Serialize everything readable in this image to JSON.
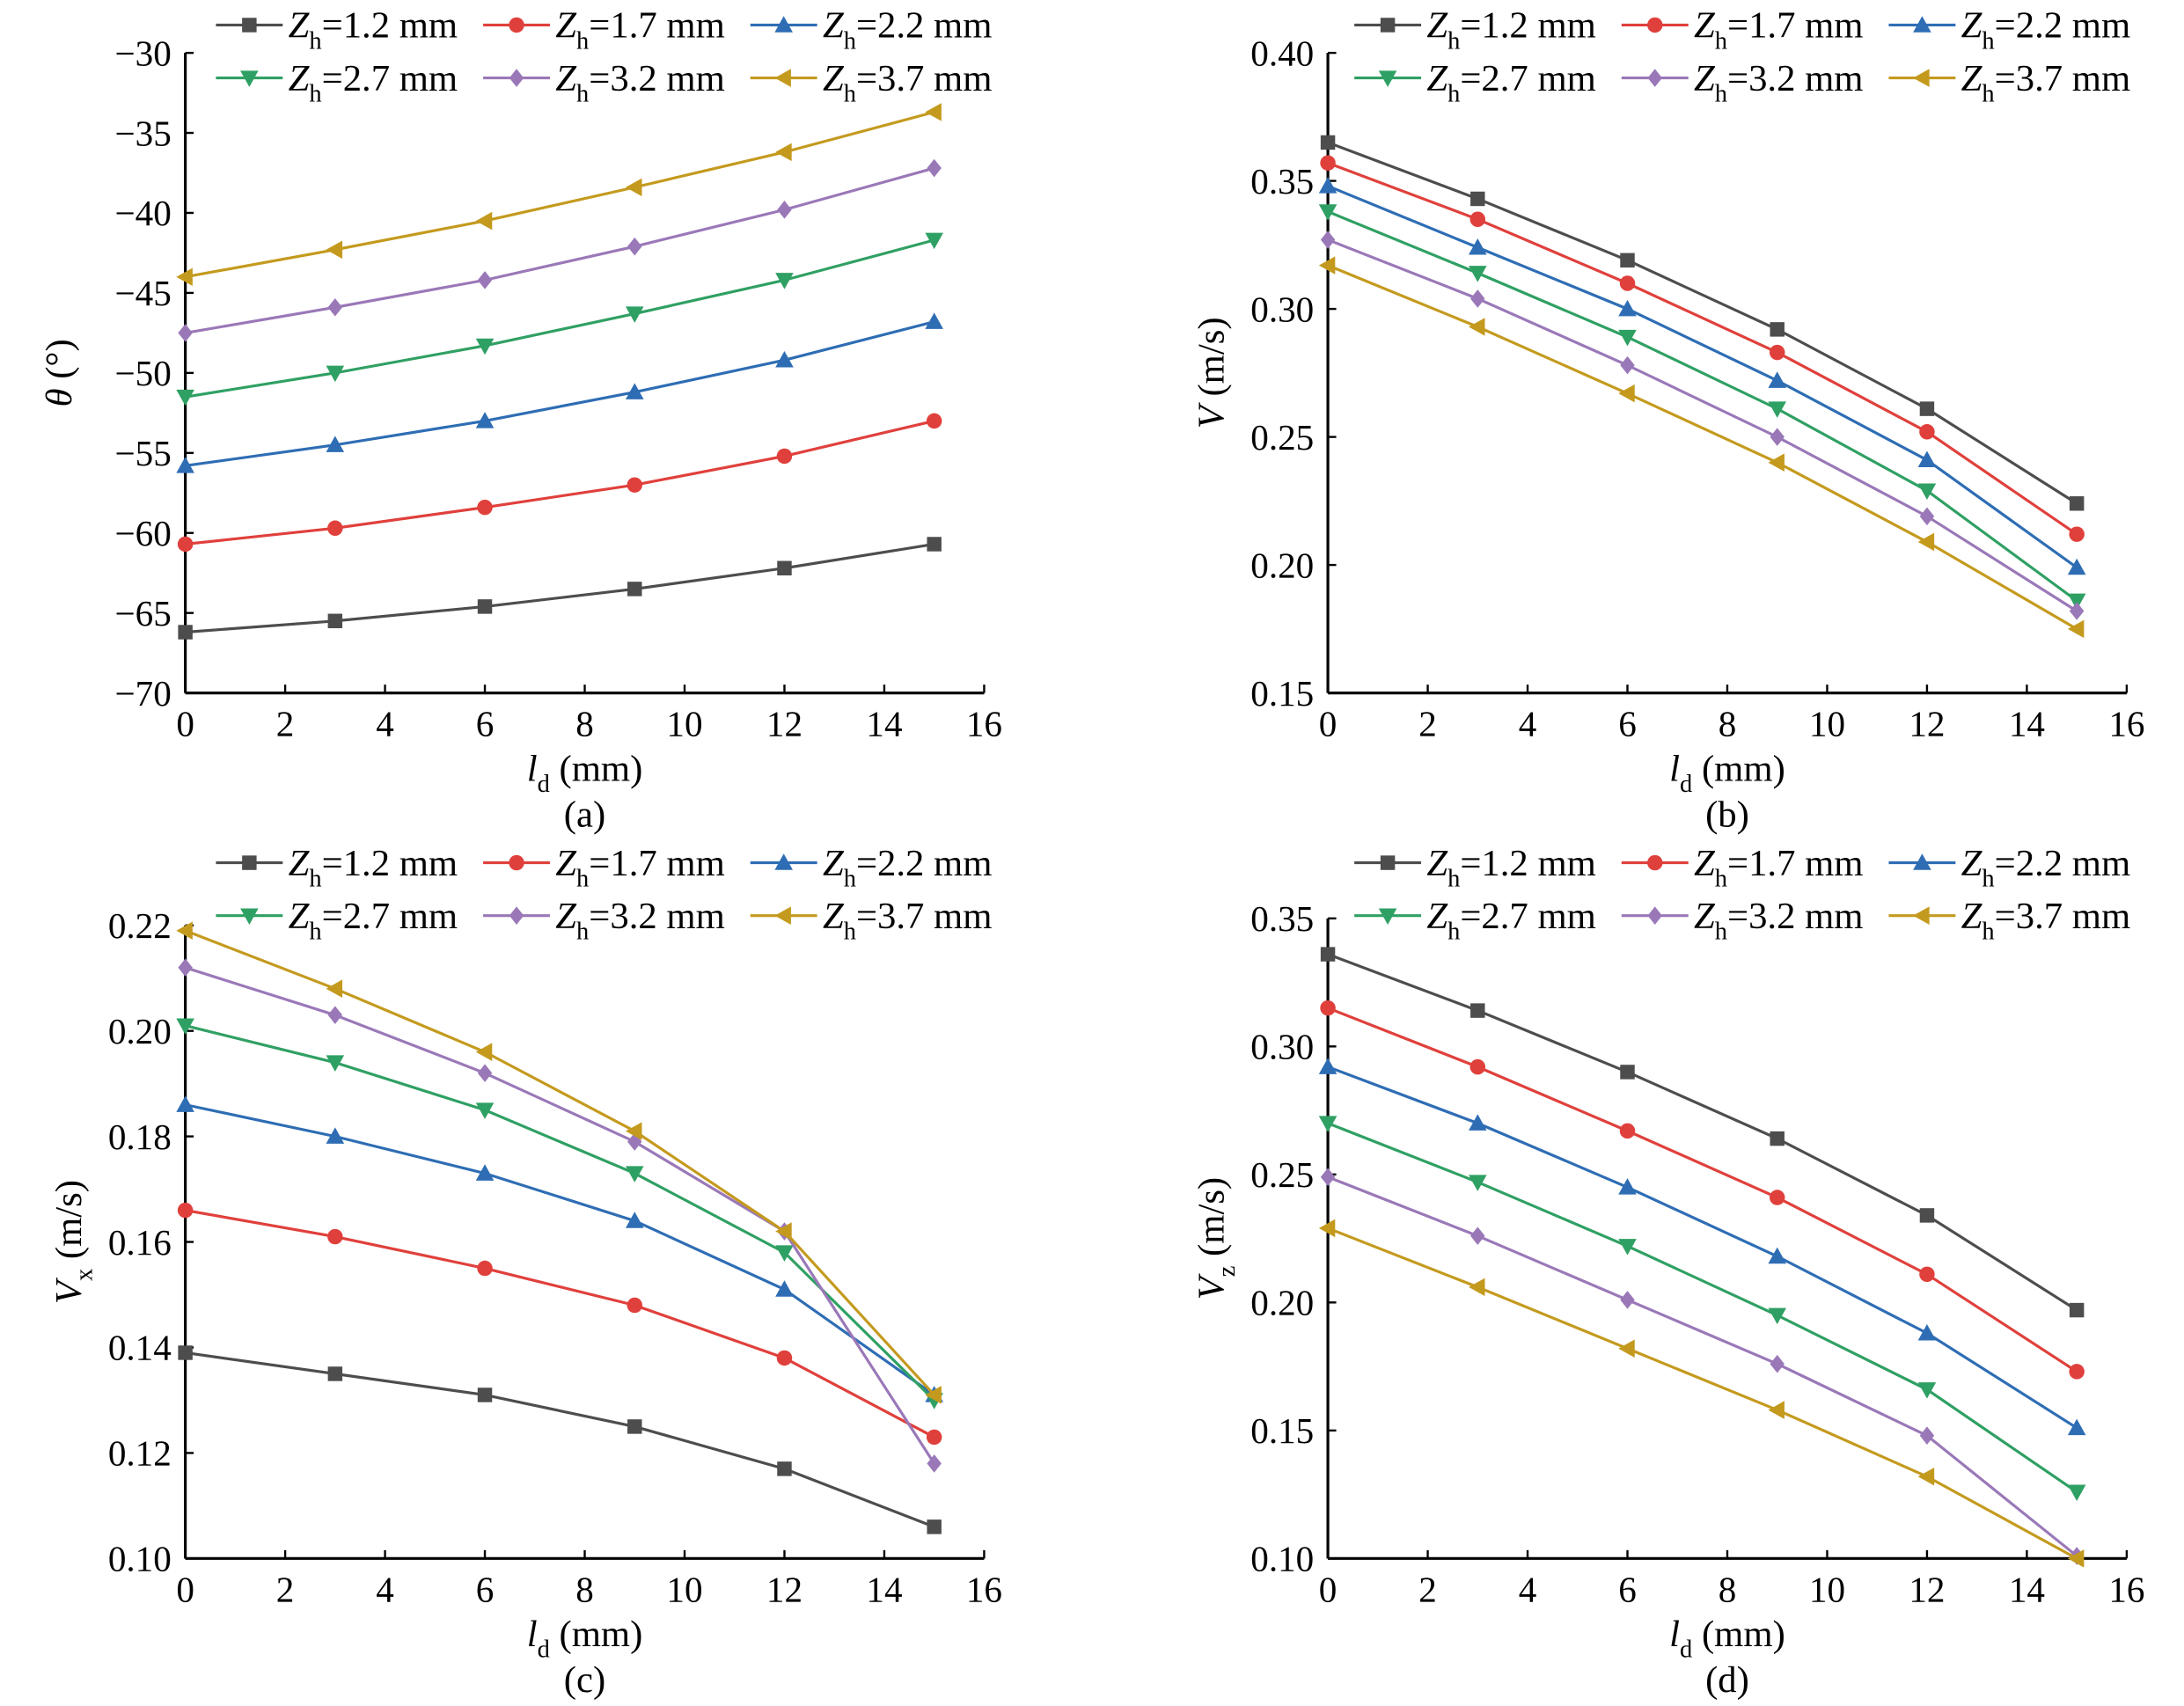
{
  "colors": {
    "Z1.2": "#4d4d4d",
    "Z1.7": "#e0403c",
    "Z2.2": "#2e6db4",
    "Z2.7": "#2fa063",
    "Z3.2": "#9a78b8",
    "Z3.7": "#c49a1e"
  },
  "legend": [
    {
      "key": "Z1.2",
      "sym": "Z",
      "sub": "h",
      "rest": "=1.2 mm",
      "marker": "square"
    },
    {
      "key": "Z1.7",
      "sym": "Z",
      "sub": "h",
      "rest": "=1.7 mm",
      "marker": "circle"
    },
    {
      "key": "Z2.2",
      "sym": "Z",
      "sub": "h",
      "rest": "=2.2 mm",
      "marker": "triangle-up"
    },
    {
      "key": "Z2.7",
      "sym": "Z",
      "sub": "h",
      "rest": "=2.7 mm",
      "marker": "triangle-down"
    },
    {
      "key": "Z3.2",
      "sym": "Z",
      "sub": "h",
      "rest": "=3.2 mm",
      "marker": "diamond"
    },
    {
      "key": "Z3.7",
      "sym": "Z",
      "sub": "h",
      "rest": "=3.7 mm",
      "marker": "triangle-left"
    }
  ],
  "chart_data": [
    {
      "type": "line",
      "caption": "(a)",
      "xlabel": {
        "sym": "l",
        "sub": "d",
        "unit": " (mm)"
      },
      "ylabel": {
        "sym": "θ",
        "sub": "",
        "unit": " (°)"
      },
      "xlim": [
        0,
        16
      ],
      "xticks": [
        0,
        2,
        4,
        6,
        8,
        10,
        12,
        14,
        16
      ],
      "ylim": [
        -70,
        -30
      ],
      "yticks": [
        -70,
        -65,
        -60,
        -55,
        -50,
        -45,
        -40,
        -35,
        -30
      ],
      "ydec": 0,
      "x": [
        0,
        3,
        6,
        9,
        12,
        15
      ],
      "series": [
        {
          "name": "Zh=1.2 mm",
          "key": "Z1.2",
          "values": [
            -66.2,
            -65.5,
            -64.6,
            -63.5,
            -62.2,
            -60.7
          ]
        },
        {
          "name": "Zh=1.7 mm",
          "key": "Z1.7",
          "values": [
            -60.7,
            -59.7,
            -58.4,
            -57.0,
            -55.2,
            -53.0
          ]
        },
        {
          "name": "Zh=2.2 mm",
          "key": "Z2.2",
          "values": [
            -55.8,
            -54.5,
            -53.0,
            -51.2,
            -49.2,
            -46.8
          ]
        },
        {
          "name": "Zh=2.7 mm",
          "key": "Z2.7",
          "values": [
            -51.5,
            -50.0,
            -48.3,
            -46.3,
            -44.2,
            -41.7
          ]
        },
        {
          "name": "Zh=3.2 mm",
          "key": "Z3.2",
          "values": [
            -47.5,
            -45.9,
            -44.2,
            -42.1,
            -39.8,
            -37.2
          ]
        },
        {
          "name": "Zh=3.7 mm",
          "key": "Z3.7",
          "values": [
            -44.0,
            -42.3,
            -40.5,
            -38.4,
            -36.2,
            -33.7
          ]
        }
      ]
    },
    {
      "type": "line",
      "caption": "(b)",
      "xlabel": {
        "sym": "l",
        "sub": "d",
        "unit": " (mm)"
      },
      "ylabel": {
        "sym": "V",
        "sub": "",
        "unit": " (m/s)"
      },
      "xlim": [
        0,
        16
      ],
      "xticks": [
        0,
        2,
        4,
        6,
        8,
        10,
        12,
        14,
        16
      ],
      "ylim": [
        0.15,
        0.4
      ],
      "yticks": [
        0.15,
        0.2,
        0.25,
        0.3,
        0.35,
        0.4
      ],
      "ydec": 2,
      "x": [
        0,
        3,
        6,
        9,
        12,
        15
      ],
      "series": [
        {
          "name": "Zh=1.2 mm",
          "key": "Z1.2",
          "values": [
            0.365,
            0.343,
            0.319,
            0.292,
            0.261,
            0.224
          ]
        },
        {
          "name": "Zh=1.7 mm",
          "key": "Z1.7",
          "values": [
            0.357,
            0.335,
            0.31,
            0.283,
            0.252,
            0.212
          ]
        },
        {
          "name": "Zh=2.2 mm",
          "key": "Z2.2",
          "values": [
            0.348,
            0.324,
            0.3,
            0.272,
            0.241,
            0.199
          ]
        },
        {
          "name": "Zh=2.7 mm",
          "key": "Z2.7",
          "values": [
            0.338,
            0.314,
            0.289,
            0.261,
            0.229,
            0.186
          ]
        },
        {
          "name": "Zh=3.2 mm",
          "key": "Z3.2",
          "values": [
            0.327,
            0.304,
            0.278,
            0.25,
            0.219,
            0.182
          ]
        },
        {
          "name": "Zh=3.7 mm",
          "key": "Z3.7",
          "values": [
            0.317,
            0.293,
            0.267,
            0.24,
            0.209,
            0.175
          ]
        }
      ]
    },
    {
      "type": "line",
      "caption": "(c)",
      "xlabel": {
        "sym": "l",
        "sub": "d",
        "unit": " (mm)"
      },
      "ylabel": {
        "sym": "V",
        "sub": "x",
        "unit": " (m/s)"
      },
      "xlim": [
        0,
        16
      ],
      "xticks": [
        0,
        2,
        4,
        6,
        8,
        10,
        12,
        14,
        16
      ],
      "ylim": [
        0.1,
        0.22
      ],
      "yticks": [
        0.1,
        0.12,
        0.14,
        0.16,
        0.18,
        0.2,
        0.22
      ],
      "ydec": 2,
      "x": [
        0,
        3,
        6,
        9,
        12,
        15
      ],
      "series": [
        {
          "name": "Zh=1.2 mm",
          "key": "Z1.2",
          "values": [
            0.139,
            0.135,
            0.131,
            0.125,
            0.117,
            0.106
          ]
        },
        {
          "name": "Zh=1.7 mm",
          "key": "Z1.7",
          "values": [
            0.166,
            0.161,
            0.155,
            0.148,
            0.138,
            0.123
          ]
        },
        {
          "name": "Zh=2.2 mm",
          "key": "Z2.2",
          "values": [
            0.186,
            0.18,
            0.173,
            0.164,
            0.151,
            0.131
          ]
        },
        {
          "name": "Zh=2.7 mm",
          "key": "Z2.7",
          "values": [
            0.201,
            0.194,
            0.185,
            0.173,
            0.158,
            0.13
          ]
        },
        {
          "name": "Zh=3.2 mm",
          "key": "Z3.2",
          "values": [
            0.212,
            0.203,
            0.192,
            0.179,
            0.162,
            0.118
          ]
        },
        {
          "name": "Zh=3.7 mm",
          "key": "Z3.7",
          "values": [
            0.219,
            0.208,
            0.196,
            0.181,
            0.162,
            0.131
          ]
        }
      ]
    },
    {
      "type": "line",
      "caption": "(d)",
      "xlabel": {
        "sym": "l",
        "sub": "d",
        "unit": " (mm)"
      },
      "ylabel": {
        "sym": "V",
        "sub": "z",
        "unit": " (m/s)"
      },
      "xlim": [
        0,
        16
      ],
      "xticks": [
        0,
        2,
        4,
        6,
        8,
        10,
        12,
        14,
        16
      ],
      "ylim": [
        0.1,
        0.35
      ],
      "yticks": [
        0.1,
        0.15,
        0.2,
        0.25,
        0.3,
        0.35
      ],
      "ydec": 2,
      "x": [
        0,
        3,
        6,
        9,
        12,
        15
      ],
      "series": [
        {
          "name": "Zh=1.2 mm",
          "key": "Z1.2",
          "values": [
            0.336,
            0.314,
            0.29,
            0.264,
            0.234,
            0.197
          ]
        },
        {
          "name": "Zh=1.7 mm",
          "key": "Z1.7",
          "values": [
            0.315,
            0.292,
            0.267,
            0.241,
            0.211,
            0.173
          ]
        },
        {
          "name": "Zh=2.2 mm",
          "key": "Z2.2",
          "values": [
            0.292,
            0.27,
            0.245,
            0.218,
            0.188,
            0.151
          ]
        },
        {
          "name": "Zh=2.7 mm",
          "key": "Z2.7",
          "values": [
            0.27,
            0.247,
            0.222,
            0.195,
            0.166,
            0.126
          ]
        },
        {
          "name": "Zh=3.2 mm",
          "key": "Z3.2",
          "values": [
            0.249,
            0.226,
            0.201,
            0.176,
            0.148,
            0.101
          ]
        },
        {
          "name": "Zh=3.7 mm",
          "key": "Z3.7",
          "values": [
            0.229,
            0.206,
            0.182,
            0.158,
            0.132,
            0.1
          ]
        }
      ]
    }
  ]
}
